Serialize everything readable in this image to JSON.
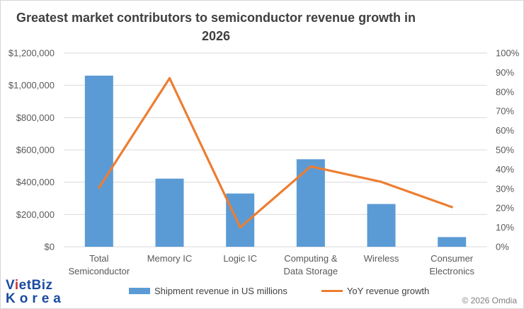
{
  "chart_data": {
    "type": "bar",
    "title": "Greatest market contributors to semiconductor revenue growth in\n2026",
    "categories": [
      [
        "Total",
        "Semiconductor"
      ],
      [
        "Memory IC"
      ],
      [
        "Logic IC"
      ],
      [
        "Computing &",
        "Data Storage"
      ],
      [
        "Wireless"
      ],
      [
        "Consumer",
        "Electronics"
      ]
    ],
    "series": [
      {
        "name": "Shipment revenue in US millions",
        "type": "bar",
        "axis": "left",
        "color": "#5b9bd5",
        "values": [
          1060000,
          422000,
          330000,
          542000,
          265000,
          60000
        ]
      },
      {
        "name": "YoY revenue growth",
        "type": "line",
        "axis": "right",
        "color": "#ed7d31",
        "values": [
          30.5,
          87,
          10,
          41.5,
          33.5,
          20.5
        ]
      }
    ],
    "y_left": {
      "min": 0,
      "max": 1200000,
      "ticks": [
        "$0",
        "$200,000",
        "$400,000",
        "$600,000",
        "$800,000",
        "$1,000,000",
        "$1,200,000"
      ]
    },
    "y_right": {
      "min": 0,
      "max": 100,
      "ticks": [
        "0%",
        "10%",
        "20%",
        "30%",
        "40%",
        "50%",
        "60%",
        "70%",
        "80%",
        "90%",
        "100%"
      ]
    },
    "grid": true,
    "legend": "bottom"
  },
  "logo": {
    "part1": "V",
    "part2": "i",
    "part3": "etBiz",
    "line2": "Korea"
  },
  "copyright": "© 2026 Omdia"
}
